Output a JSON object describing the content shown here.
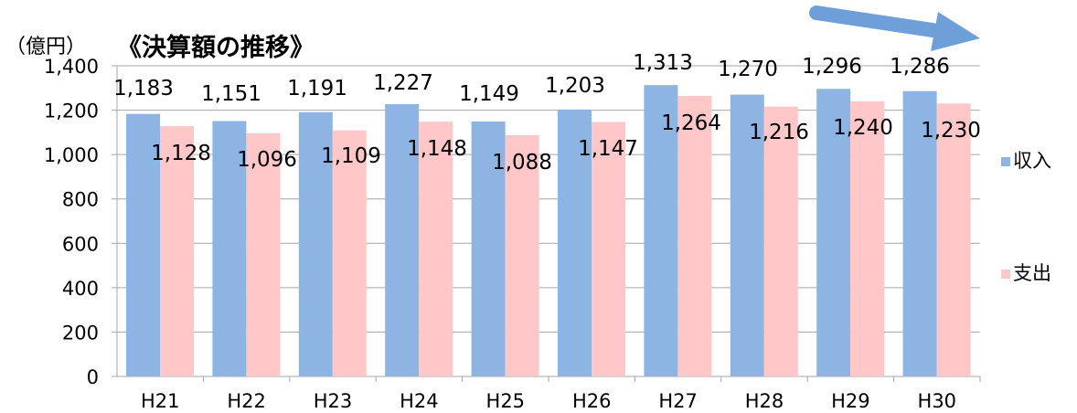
{
  "chart_data": {
    "type": "bar",
    "title": "《決算額の推移》",
    "unit_label": "（億円）",
    "categories": [
      "H21",
      "H22",
      "H23",
      "H24",
      "H25",
      "H26",
      "H27",
      "H28",
      "H29",
      "H30"
    ],
    "series": [
      {
        "name": "収入",
        "color": "#8eb4e3",
        "values": [
          1183,
          1151,
          1191,
          1227,
          1149,
          1203,
          1313,
          1270,
          1296,
          1286
        ],
        "labels": [
          "1,183",
          "1,151",
          "1,191",
          "1,227",
          "1,149",
          "1,203",
          "1,313",
          "1,270",
          "1,296",
          "1,286"
        ]
      },
      {
        "name": "支出",
        "color": "#ffc7c7",
        "values": [
          1128,
          1096,
          1109,
          1148,
          1088,
          1147,
          1264,
          1216,
          1240,
          1230
        ],
        "labels": [
          "1,128",
          "1,096",
          "1,109",
          "1,148",
          "1,088",
          "1,147",
          "1,264",
          "1,216",
          "1,240",
          "1,230"
        ]
      }
    ],
    "ylim": [
      0,
      1400
    ],
    "yticks": [
      0,
      200,
      400,
      600,
      800,
      1000,
      1200,
      1400
    ],
    "ytick_labels": [
      "0",
      "200",
      "400",
      "600",
      "800",
      "1,000",
      "1,200",
      "1,400"
    ],
    "grid": true,
    "legend_position": "right",
    "decoration": "blue arrow pointing right"
  }
}
